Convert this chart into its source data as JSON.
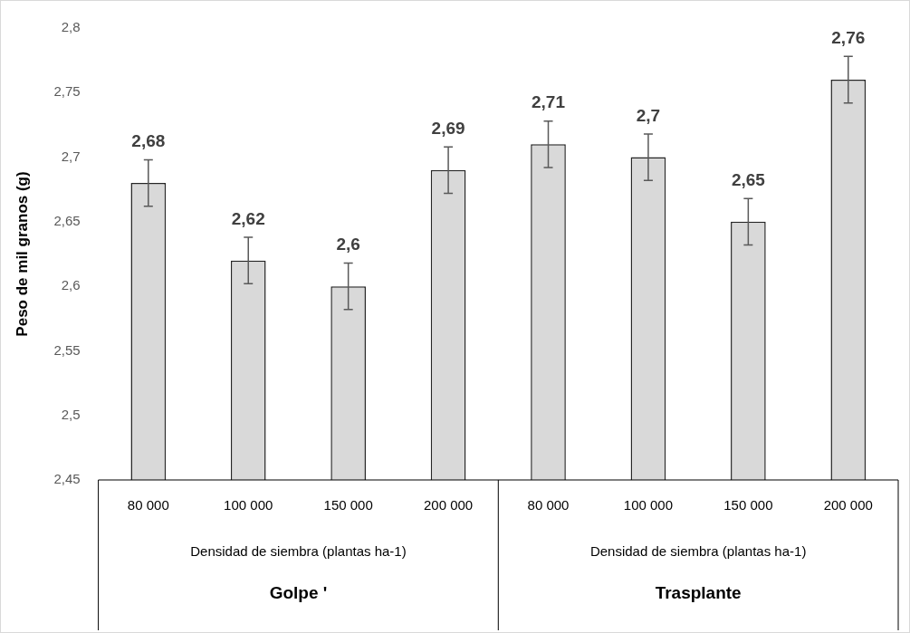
{
  "chart_data": {
    "type": "bar",
    "ylabel": "Peso de mil granos (g)",
    "categories": [
      "80 000",
      "100 000",
      "150 000",
      "200 000",
      "80 000",
      "100 000",
      "150 000",
      "200 000"
    ],
    "values": [
      2.68,
      2.62,
      2.6,
      2.69,
      2.71,
      2.7,
      2.65,
      2.76
    ],
    "errors": [
      0.018,
      0.018,
      0.018,
      0.018,
      0.018,
      0.018,
      0.018,
      0.018
    ],
    "value_labels": [
      "2,68",
      "2,62",
      "2,6",
      "2,69",
      "2,71",
      "2,7",
      "2,65",
      "2,76"
    ],
    "color": "#d9d9d9",
    "ylim": [
      2.45,
      2.8
    ],
    "yticks": [
      {
        "value": 2.45,
        "label": "2,45"
      },
      {
        "value": 2.5,
        "label": "2,5"
      },
      {
        "value": 2.55,
        "label": "2,55"
      },
      {
        "value": 2.6,
        "label": "2,6"
      },
      {
        "value": 2.65,
        "label": "2,65"
      },
      {
        "value": 2.7,
        "label": "2,7"
      },
      {
        "value": 2.75,
        "label": "2,75"
      },
      {
        "value": 2.8,
        "label": "2,8"
      }
    ],
    "grid": false,
    "legend": false,
    "annotations": [
      "Densidad de siembra (plantas ha-1)",
      "Densidad de siembra (plantas ha-1)",
      "Golpe '",
      "Trasplante"
    ]
  }
}
